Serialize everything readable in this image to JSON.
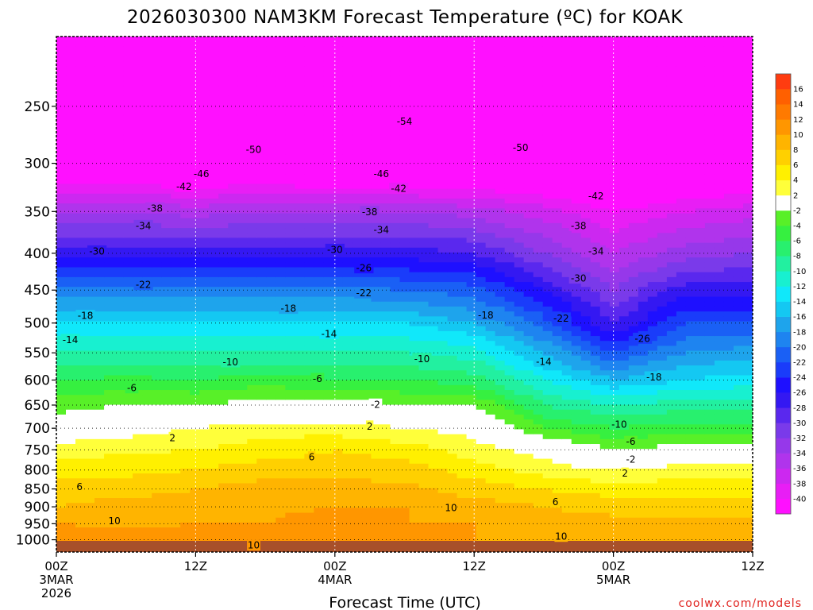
{
  "chart_data": {
    "type": "heatmap",
    "title": "2026030300 NAM3KM Forecast Temperature (ºC) for KOAK",
    "xlabel": "Forecast Time (UTC)",
    "ylabel": "",
    "yscale": "log-pressure",
    "y_reversed": true,
    "ylim": [
      1040,
      200
    ],
    "y_ticks": [
      250,
      300,
      350,
      400,
      450,
      500,
      550,
      600,
      650,
      700,
      750,
      800,
      850,
      900,
      950,
      1000
    ],
    "xlim": [
      0,
      60
    ],
    "x_ticks": [
      {
        "hour": 0,
        "label": "00Z",
        "date": "3MAR",
        "year": "2026"
      },
      {
        "hour": 12,
        "label": "12Z",
        "date": "",
        "year": ""
      },
      {
        "hour": 24,
        "label": "00Z",
        "date": "4MAR",
        "year": ""
      },
      {
        "hour": 36,
        "label": "12Z",
        "date": "",
        "year": ""
      },
      {
        "hour": 48,
        "label": "00Z",
        "date": "5MAR",
        "year": ""
      },
      {
        "hour": 60,
        "label": "12Z",
        "date": "",
        "year": ""
      }
    ],
    "grid": true,
    "legend": "colorbar-right",
    "colorbar": {
      "levels": [
        -42,
        -40,
        -38,
        -36,
        -34,
        -32,
        -30,
        -28,
        -26,
        -24,
        -22,
        -20,
        -18,
        -16,
        -14,
        -12,
        -10,
        -8,
        -6,
        -4,
        -2,
        2,
        4,
        6,
        8,
        10,
        12,
        14,
        16,
        18
      ],
      "labels": [
        "-40",
        "-38",
        "-36",
        "-34",
        "-32",
        "-30",
        "-28",
        "-26",
        "-24",
        "-22",
        "-20",
        "-18",
        "-16",
        "-14",
        "-12",
        "-10",
        "-8",
        "-6",
        "-4",
        "-2",
        "2",
        "4",
        "6",
        "8",
        "10",
        "12",
        "14",
        "16"
      ],
      "colors": [
        "#ff10ff",
        "#e81ef5",
        "#cc28f0",
        "#b034ec",
        "#9638ea",
        "#7a3aea",
        "#5a28ee",
        "#3418f2",
        "#1e10ff",
        "#1a3cfa",
        "#1a60f5",
        "#1e84f0",
        "#1ea4ec",
        "#14c8f2",
        "#10e8fa",
        "#18f0d0",
        "#22f0a0",
        "#28f06e",
        "#36f040",
        "#58f028",
        "#ffffff",
        "#ffff3a",
        "#fff000",
        "#ffd000",
        "#ffb400",
        "#ff9600",
        "#ff7a00",
        "#ff6000",
        "#ff3c10"
      ]
    },
    "temperature_profiles": [
      {
        "hour": 0,
        "p": [
          1000,
          950,
          900,
          850,
          800,
          750,
          700,
          650,
          600,
          550,
          500,
          450,
          400,
          350,
          300,
          250,
          205
        ],
        "t": [
          12,
          10,
          8,
          7,
          5,
          3,
          0,
          -3,
          -6,
          -10,
          -14,
          -19,
          -27,
          -34,
          -45,
          -53,
          -57
        ]
      },
      {
        "hour": 6,
        "p": [
          1000,
          950,
          900,
          850,
          800,
          750,
          700,
          650,
          600,
          550,
          500,
          450,
          400,
          350,
          300,
          250,
          205
        ],
        "t": [
          11,
          9.5,
          9,
          7,
          5.5,
          3.5,
          1,
          -2,
          -5.5,
          -9.5,
          -14,
          -19,
          -27,
          -34,
          -45,
          -53,
          -57
        ]
      },
      {
        "hour": 12,
        "p": [
          1000,
          950,
          900,
          850,
          800,
          750,
          700,
          650,
          600,
          550,
          500,
          450,
          400,
          350,
          300,
          250,
          205
        ],
        "t": [
          11,
          10,
          9,
          8,
          6,
          4,
          2,
          -2,
          -6,
          -10,
          -14,
          -19,
          -27,
          -35,
          -45,
          -53,
          -57
        ]
      },
      {
        "hour": 18,
        "p": [
          1000,
          950,
          900,
          850,
          800,
          750,
          700,
          650,
          600,
          550,
          500,
          450,
          400,
          350,
          300,
          250,
          205
        ],
        "t": [
          11,
          10,
          9.5,
          9,
          7,
          5,
          3,
          -1,
          -5,
          -10,
          -14,
          -19,
          -27,
          -34,
          -45,
          -53,
          -57
        ]
      },
      {
        "hour": 24,
        "p": [
          1000,
          950,
          900,
          850,
          800,
          750,
          700,
          650,
          600,
          550,
          500,
          450,
          400,
          350,
          300,
          250,
          205
        ],
        "t": [
          11,
          11,
          10,
          9,
          7,
          6,
          3,
          -1,
          -6,
          -10,
          -14,
          -19,
          -27,
          -34,
          -46,
          -53,
          -57
        ]
      },
      {
        "hour": 30,
        "p": [
          1000,
          950,
          900,
          850,
          800,
          750,
          700,
          650,
          600,
          550,
          500,
          450,
          400,
          350,
          300,
          250,
          205
        ],
        "t": [
          10,
          10,
          10,
          8.5,
          7,
          5,
          2,
          -2,
          -6,
          -10,
          -14,
          -20,
          -27,
          -34,
          -46,
          -53,
          -57
        ]
      },
      {
        "hour": 36,
        "p": [
          1000,
          950,
          900,
          850,
          800,
          750,
          700,
          650,
          600,
          550,
          500,
          450,
          400,
          350,
          300,
          250,
          205
        ],
        "t": [
          10,
          10,
          9,
          7,
          5,
          3,
          1,
          -2,
          -7,
          -11,
          -16,
          -21,
          -28,
          -35,
          -46,
          -53,
          -57
        ]
      },
      {
        "hour": 42,
        "p": [
          1000,
          950,
          900,
          850,
          800,
          750,
          700,
          650,
          600,
          550,
          500,
          450,
          400,
          350,
          300,
          250,
          205
        ],
        "t": [
          10,
          9,
          8,
          6,
          3,
          1,
          -4,
          -8,
          -12,
          -16,
          -21,
          -26,
          -32,
          -37,
          -46,
          -53,
          -57
        ]
      },
      {
        "hour": 48,
        "p": [
          1000,
          950,
          900,
          850,
          800,
          750,
          700,
          650,
          600,
          550,
          500,
          450,
          400,
          350,
          300,
          250,
          205
        ],
        "t": [
          10,
          9,
          7,
          5,
          2,
          -2,
          -6,
          -10,
          -16,
          -22,
          -28,
          -32,
          -36,
          -40,
          -47,
          -53,
          -56
        ]
      },
      {
        "hour": 54,
        "p": [
          1000,
          950,
          900,
          850,
          800,
          750,
          700,
          650,
          600,
          550,
          500,
          450,
          400,
          350,
          300,
          250,
          205
        ],
        "t": [
          10,
          9,
          7,
          5,
          3,
          -1,
          -5,
          -9,
          -14,
          -18,
          -22,
          -27,
          -33,
          -38,
          -46,
          -52,
          -55
        ]
      },
      {
        "hour": 60,
        "p": [
          1000,
          950,
          900,
          850,
          800,
          750,
          700,
          650,
          600,
          550,
          500,
          450,
          400,
          350,
          300,
          250,
          205
        ],
        "t": [
          10,
          9,
          7,
          5,
          3,
          -1,
          -5,
          -9,
          -13,
          -17,
          -22,
          -27,
          -32,
          -37,
          -45,
          -51,
          -54
        ]
      }
    ],
    "contour_labels": [
      {
        "text": "-54",
        "hour": 30,
        "p": 262
      },
      {
        "text": "-50",
        "hour": 17,
        "p": 287
      },
      {
        "text": "-50",
        "hour": 40,
        "p": 285
      },
      {
        "text": "-46",
        "hour": 12.5,
        "p": 310
      },
      {
        "text": "-46",
        "hour": 28,
        "p": 310
      },
      {
        "text": "-42",
        "hour": 11,
        "p": 323
      },
      {
        "text": "-42",
        "hour": 29.5,
        "p": 325
      },
      {
        "text": "-42",
        "hour": 46.5,
        "p": 333
      },
      {
        "text": "-38",
        "hour": 8.5,
        "p": 346
      },
      {
        "text": "-38",
        "hour": 27,
        "p": 350
      },
      {
        "text": "-38",
        "hour": 45,
        "p": 366
      },
      {
        "text": "-34",
        "hour": 7.5,
        "p": 366
      },
      {
        "text": "-34",
        "hour": 28,
        "p": 371
      },
      {
        "text": "-34",
        "hour": 46.5,
        "p": 397
      },
      {
        "text": "-30",
        "hour": 3.5,
        "p": 397
      },
      {
        "text": "-30",
        "hour": 24,
        "p": 395
      },
      {
        "text": "-30",
        "hour": 45,
        "p": 433
      },
      {
        "text": "-26",
        "hour": 26.5,
        "p": 419
      },
      {
        "text": "-26",
        "hour": 50.5,
        "p": 525
      },
      {
        "text": "-22",
        "hour": 7.5,
        "p": 442
      },
      {
        "text": "-22",
        "hour": 26.5,
        "p": 454
      },
      {
        "text": "-22",
        "hour": 43.5,
        "p": 492
      },
      {
        "text": "-18",
        "hour": 2.5,
        "p": 488
      },
      {
        "text": "-18",
        "hour": 20,
        "p": 477
      },
      {
        "text": "-18",
        "hour": 37,
        "p": 487
      },
      {
        "text": "-18",
        "hour": 51.5,
        "p": 594
      },
      {
        "text": "-14",
        "hour": 1.2,
        "p": 527
      },
      {
        "text": "-14",
        "hour": 23.5,
        "p": 517
      },
      {
        "text": "-14",
        "hour": 42,
        "p": 565
      },
      {
        "text": "-10",
        "hour": 15,
        "p": 566
      },
      {
        "text": "-10",
        "hour": 31.5,
        "p": 560
      },
      {
        "text": "-10",
        "hour": 48.5,
        "p": 691
      },
      {
        "text": "-6",
        "hour": 6.5,
        "p": 615
      },
      {
        "text": "-6",
        "hour": 22.5,
        "p": 597
      },
      {
        "text": "-6",
        "hour": 49.5,
        "p": 730
      },
      {
        "text": "-2",
        "hour": 27.5,
        "p": 648
      },
      {
        "text": "-2",
        "hour": 49.5,
        "p": 773
      },
      {
        "text": "2",
        "hour": 10,
        "p": 721
      },
      {
        "text": "2",
        "hour": 27,
        "p": 695
      },
      {
        "text": "2",
        "hour": 49,
        "p": 808
      },
      {
        "text": "6",
        "hour": 2,
        "p": 843
      },
      {
        "text": "6",
        "hour": 22,
        "p": 767
      },
      {
        "text": "6",
        "hour": 43,
        "p": 885
      },
      {
        "text": "10",
        "hour": 5,
        "p": 941
      },
      {
        "text": "10",
        "hour": 17,
        "p": 1017
      },
      {
        "text": "10",
        "hour": 34,
        "p": 902
      },
      {
        "text": "10",
        "hour": 43.5,
        "p": 989
      }
    ]
  },
  "footer": {
    "credit": "coolwx.com/models"
  }
}
